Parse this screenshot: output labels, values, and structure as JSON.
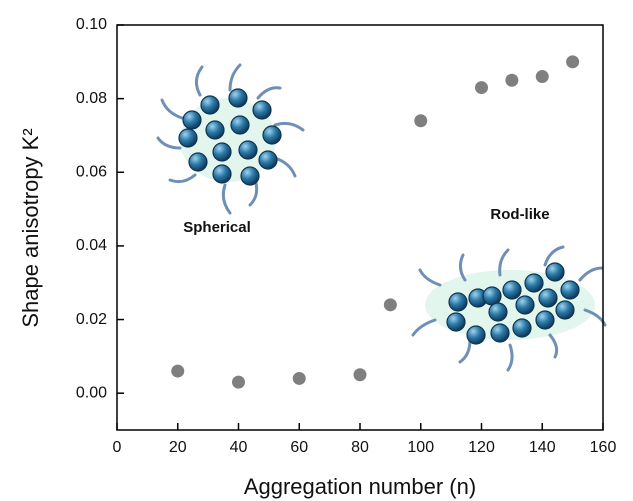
{
  "chart_data": {
    "type": "scatter",
    "x_label": "Aggregation number (n)",
    "y_label": "Shape anisotropy K²",
    "annotations": [
      "Spherical",
      "Rod-like"
    ],
    "x": [
      20,
      40,
      60,
      80,
      90,
      100,
      120,
      130,
      140,
      150
    ],
    "values": [
      0.006,
      0.003,
      0.004,
      0.005,
      0.024,
      0.074,
      0.083,
      0.085,
      0.086,
      0.09
    ],
    "color": "#7f7f7f",
    "xlim": [
      0,
      160
    ],
    "xticks": [
      0,
      20,
      40,
      60,
      80,
      100,
      120,
      140,
      160
    ],
    "ylim": [
      -0.01,
      0.1
    ],
    "yticks": [
      {
        "value": 0,
        "label": "0.00"
      },
      {
        "value": 0.02,
        "label": "0.02"
      },
      {
        "value": 0.04,
        "label": "0.04"
      },
      {
        "value": 0.06,
        "label": "0.06"
      },
      {
        "value": 0.08,
        "label": "0.08"
      },
      {
        "value": 0.1,
        "label": "0.10"
      }
    ]
  }
}
